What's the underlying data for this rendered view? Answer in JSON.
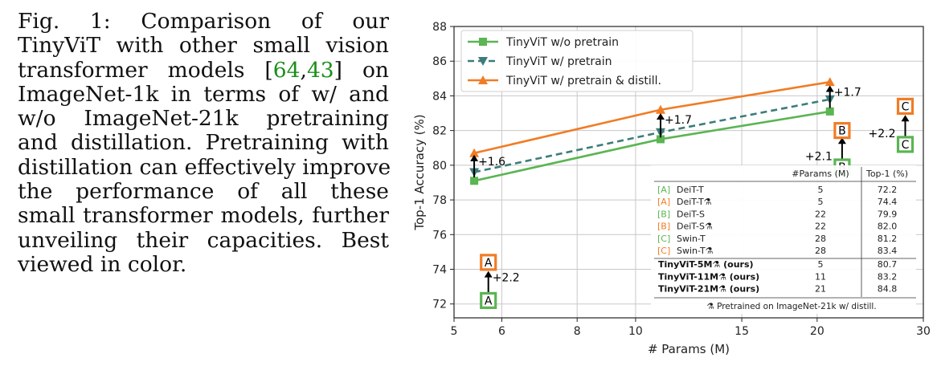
{
  "caption": {
    "label": "Fig. 1:",
    "lines": [
      [
        "Comparison of our"
      ],
      [
        "TinyViT with other small vision"
      ],
      [
        "transformer models [",
        "REF1",
        ",",
        "REF2",
        "] on"
      ],
      [
        "ImageNet-1k in terms of w/ and"
      ],
      [
        "w/o ImageNet-21k pretraining"
      ],
      [
        "and distillation. Pretraining with"
      ],
      [
        "distillation can effectively improve"
      ],
      [
        "the performance of all these"
      ],
      [
        "small transformer models, further"
      ],
      [
        "unveiling their capacities. Best"
      ],
      [
        "viewed in color."
      ]
    ],
    "refs": [
      "64",
      "43"
    ]
  },
  "chart_data": {
    "type": "line",
    "xlabel": "# Params (M)",
    "ylabel": "Top-1 Accuracy (%)",
    "xlim": [
      5,
      30
    ],
    "ylim": [
      71.2,
      88
    ],
    "x_scale": "log",
    "x_ticks": [
      5,
      6,
      8,
      10,
      15,
      20,
      30
    ],
    "y_ticks": [
      72,
      74,
      76,
      78,
      80,
      82,
      84,
      86,
      88
    ],
    "grid": true,
    "legend_position": "top-left",
    "series": [
      {
        "name": "TinyViT w/o pretrain",
        "x": [
          5.4,
          11,
          21
        ],
        "y": [
          79.1,
          81.5,
          83.1
        ],
        "color": "#5ab552",
        "marker": "square",
        "dash": "solid"
      },
      {
        "name": "TinyViT w/ pretrain",
        "x": [
          5.4,
          11,
          21
        ],
        "y": [
          79.6,
          81.9,
          83.8
        ],
        "color": "#3c7d7a",
        "marker": "triangle-down",
        "dash": "dashed"
      },
      {
        "name": "TinyViT w/ pretrain & distill.",
        "x": [
          5.4,
          11,
          21
        ],
        "y": [
          80.7,
          83.2,
          84.8
        ],
        "color": "#f07c24",
        "marker": "triangle-up",
        "dash": "solid"
      }
    ],
    "gain_annotations": [
      {
        "x": 5.4,
        "y_from": 79.3,
        "y_to": 80.6,
        "text": "+1.6"
      },
      {
        "x": 11,
        "y_from": 81.6,
        "y_to": 83.0,
        "text": "+1.7"
      },
      {
        "x": 21,
        "y_from": 83.3,
        "y_to": 84.6,
        "text": "+1.7"
      },
      {
        "x": 5.7,
        "y_from": 72.6,
        "y_to": 73.9,
        "text": "+2.2"
      },
      {
        "x": 22,
        "y_from": 80.3,
        "y_to": 81.6,
        "text": "+2.1"
      },
      {
        "x": 28,
        "y_from": 81.6,
        "y_to": 82.9,
        "text": "+2.2"
      }
    ],
    "boxed_points": [
      {
        "x": 5.7,
        "y": 72.2,
        "letter": "A",
        "color": "#5ab552"
      },
      {
        "x": 5.7,
        "y": 74.4,
        "letter": "A",
        "color": "#f07c24"
      },
      {
        "x": 22,
        "y": 79.9,
        "letter": "B",
        "color": "#5ab552"
      },
      {
        "x": 22,
        "y": 82.0,
        "letter": "B",
        "color": "#f07c24"
      },
      {
        "x": 28,
        "y": 81.2,
        "letter": "C",
        "color": "#5ab552"
      },
      {
        "x": 28,
        "y": 83.4,
        "letter": "C",
        "color": "#f07c24"
      }
    ],
    "table": {
      "headers": [
        "#Params (M)",
        "Top-1 (%)"
      ],
      "rows": [
        {
          "tag": "[A]",
          "tag_color": "#5ab552",
          "model": "DeiT-T",
          "params": "5",
          "top1": "72.2",
          "bold": false
        },
        {
          "tag": "[A]",
          "tag_color": "#f07c24",
          "model": "DeiT-T⚗",
          "params": "5",
          "top1": "74.4",
          "bold": false
        },
        {
          "tag": "[B]",
          "tag_color": "#5ab552",
          "model": "DeiT-S",
          "params": "22",
          "top1": "79.9",
          "bold": false
        },
        {
          "tag": "[B]",
          "tag_color": "#f07c24",
          "model": "DeiT-S⚗",
          "params": "22",
          "top1": "82.0",
          "bold": false
        },
        {
          "tag": "[C]",
          "tag_color": "#5ab552",
          "model": "Swin-T",
          "params": "28",
          "top1": "81.2",
          "bold": false
        },
        {
          "tag": "[C]",
          "tag_color": "#f07c24",
          "model": "Swin-T⚗",
          "params": "28",
          "top1": "83.4",
          "bold": false
        },
        {
          "tag": "",
          "tag_color": "",
          "model": "TinyViT-5M⚗ (ours)",
          "params": "5",
          "top1": "80.7",
          "bold": true
        },
        {
          "tag": "",
          "tag_color": "",
          "model": "TinyViT-11M⚗ (ours)",
          "params": "11",
          "top1": "83.2",
          "bold": true
        },
        {
          "tag": "",
          "tag_color": "",
          "model": "TinyViT-21M⚗ (ours)",
          "params": "21",
          "top1": "84.8",
          "bold": true
        }
      ],
      "footnote": "⚗ Pretrained on ImageNet-21k w/ distill."
    }
  }
}
